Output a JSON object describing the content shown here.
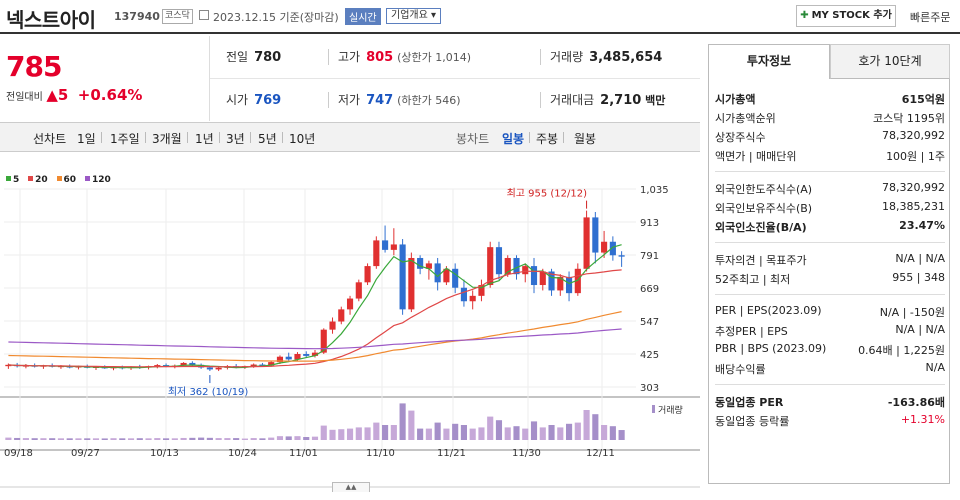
{
  "header": {
    "name": "넥스트아이",
    "code": "137940",
    "market": "코스닥",
    "date": "2023.12.15 기준(장마감)",
    "live": "실시간",
    "corp_info": "기업개요",
    "mystock": "MY STOCK 추가",
    "quick": "빠른주문"
  },
  "price": {
    "current": "785",
    "change_label": "전일대비",
    "change_arrow": "▲",
    "change": "5",
    "change_pct": "+0.64%"
  },
  "stats": {
    "prev": {
      "k": "전일",
      "v": "780"
    },
    "high": {
      "k": "고가",
      "v": "805",
      "s": "(상한가 1,014)"
    },
    "volume": {
      "k": "거래량",
      "v": "3,485,654"
    },
    "open": {
      "k": "시가",
      "v": "769"
    },
    "low": {
      "k": "저가",
      "v": "747",
      "s": "(하한가 546)"
    },
    "amount": {
      "k": "거래대금",
      "v": "2,710",
      "u": "백만"
    }
  },
  "toolbar": {
    "line_label": "선차트",
    "periods": [
      "1일",
      "1주일",
      "3개월",
      "1년",
      "3년",
      "5년",
      "10년"
    ],
    "candle_label": "봉차트",
    "candles": [
      "일봉",
      "주봉",
      "월봉"
    ]
  },
  "legend": [
    {
      "name": "5",
      "color": "#3aa83a"
    },
    {
      "name": "20",
      "color": "#e04848"
    },
    {
      "name": "60",
      "color": "#f08a30"
    },
    {
      "name": "120",
      "color": "#9b59c6"
    }
  ],
  "chart_data": {
    "type": "candlestick",
    "y_ticks": [
      "1,035",
      "913",
      "791",
      "669",
      "547",
      "425",
      "303"
    ],
    "x_ticks": [
      "09/18",
      "09/27",
      "10/13",
      "10/24",
      "11/01",
      "11/10",
      "11/21",
      "11/30",
      "12/11"
    ],
    "max_label": "최고 955 (12/12)",
    "min_label": "최저 362 (10/19)",
    "volume_label": "거래량",
    "ylim": [
      303,
      1035
    ],
    "candles": [
      [
        380,
        390,
        370,
        385
      ],
      [
        385,
        392,
        375,
        380
      ],
      [
        380,
        388,
        372,
        382
      ],
      [
        382,
        390,
        375,
        378
      ],
      [
        378,
        385,
        370,
        383
      ],
      [
        383,
        390,
        375,
        378
      ],
      [
        378,
        384,
        370,
        380
      ],
      [
        380,
        386,
        372,
        375
      ],
      [
        375,
        382,
        368,
        379
      ],
      [
        379,
        386,
        372,
        374
      ],
      [
        374,
        380,
        366,
        377
      ],
      [
        377,
        383,
        370,
        372
      ],
      [
        372,
        380,
        365,
        376
      ],
      [
        376,
        382,
        368,
        373
      ],
      [
        373,
        380,
        366,
        378
      ],
      [
        378,
        385,
        370,
        375
      ],
      [
        375,
        382,
        368,
        380
      ],
      [
        380,
        388,
        372,
        384
      ],
      [
        384,
        390,
        376,
        379
      ],
      [
        379,
        386,
        372,
        382
      ],
      [
        382,
        395,
        378,
        392
      ],
      [
        392,
        398,
        380,
        385
      ],
      [
        385,
        390,
        370,
        375
      ],
      [
        375,
        380,
        362,
        368
      ],
      [
        368,
        378,
        362,
        374
      ],
      [
        374,
        384,
        368,
        380
      ],
      [
        380,
        388,
        372,
        376
      ],
      [
        376,
        382,
        370,
        380
      ],
      [
        380,
        390,
        374,
        386
      ],
      [
        386,
        392,
        378,
        382
      ],
      [
        382,
        398,
        378,
        395
      ],
      [
        395,
        420,
        388,
        415
      ],
      [
        415,
        430,
        400,
        405
      ],
      [
        405,
        432,
        400,
        425
      ],
      [
        425,
        435,
        410,
        418
      ],
      [
        418,
        440,
        412,
        430
      ],
      [
        430,
        520,
        425,
        515
      ],
      [
        515,
        560,
        500,
        545
      ],
      [
        545,
        600,
        535,
        590
      ],
      [
        590,
        640,
        570,
        630
      ],
      [
        630,
        700,
        620,
        690
      ],
      [
        690,
        760,
        680,
        750
      ],
      [
        750,
        860,
        740,
        845
      ],
      [
        845,
        900,
        800,
        810
      ],
      [
        810,
        890,
        790,
        830
      ],
      [
        830,
        850,
        570,
        590
      ],
      [
        590,
        800,
        580,
        780
      ],
      [
        780,
        790,
        720,
        740
      ],
      [
        740,
        770,
        700,
        760
      ],
      [
        760,
        780,
        660,
        690
      ],
      [
        690,
        750,
        680,
        740
      ],
      [
        740,
        760,
        650,
        670
      ],
      [
        670,
        700,
        600,
        620
      ],
      [
        620,
        660,
        590,
        640
      ],
      [
        640,
        700,
        620,
        680
      ],
      [
        680,
        840,
        670,
        820
      ],
      [
        820,
        840,
        700,
        720
      ],
      [
        720,
        790,
        710,
        780
      ],
      [
        780,
        790,
        700,
        720
      ],
      [
        720,
        760,
        690,
        750
      ],
      [
        750,
        780,
        650,
        680
      ],
      [
        680,
        740,
        660,
        730
      ],
      [
        730,
        740,
        640,
        660
      ],
      [
        660,
        720,
        640,
        710
      ],
      [
        710,
        730,
        620,
        650
      ],
      [
        650,
        760,
        640,
        740
      ],
      [
        740,
        955,
        730,
        930
      ],
      [
        930,
        950,
        760,
        800
      ],
      [
        800,
        880,
        780,
        840
      ],
      [
        840,
        860,
        770,
        790
      ],
      [
        790,
        805,
        747,
        785
      ]
    ]
  },
  "right_panel": {
    "tab_active": "투자정보",
    "tab_other": "호가 10단계",
    "rows1": [
      {
        "l": "시가총액",
        "r": "615억원",
        "bold": true
      },
      {
        "l": "시가총액순위",
        "r": "코스닥 1195위"
      },
      {
        "l": "상장주식수",
        "r": "78,320,992"
      },
      {
        "l": "액면가 | 매매단위",
        "r": "100원 | 1주"
      }
    ],
    "rows2": [
      {
        "l": "외국인한도주식수(A)",
        "r": "78,320,992"
      },
      {
        "l": "외국인보유주식수(B)",
        "r": "18,385,231"
      },
      {
        "l": "외국인소진율(B/A)",
        "r": "23.47%",
        "bold": true
      }
    ],
    "rows3": [
      {
        "l": "투자의견 | 목표주가",
        "r": "N/A | N/A"
      },
      {
        "l": "52주최고 | 최저",
        "r": "955 | 348"
      }
    ],
    "rows4": [
      {
        "l": "PER | EPS(2023.09)",
        "r": "N/A | -150원"
      },
      {
        "l": "추정PER | EPS",
        "r": "N/A | N/A"
      },
      {
        "l": "PBR | BPS (2023.09)",
        "r": "0.64배 | 1,225원"
      },
      {
        "l": "배당수익률",
        "r": "N/A"
      }
    ],
    "rows5": [
      {
        "l": "동일업종 PER",
        "r": "-163.86배",
        "bold": true
      },
      {
        "l": "동일업종 등락률",
        "r": "+1.31%",
        "red": true
      }
    ]
  }
}
